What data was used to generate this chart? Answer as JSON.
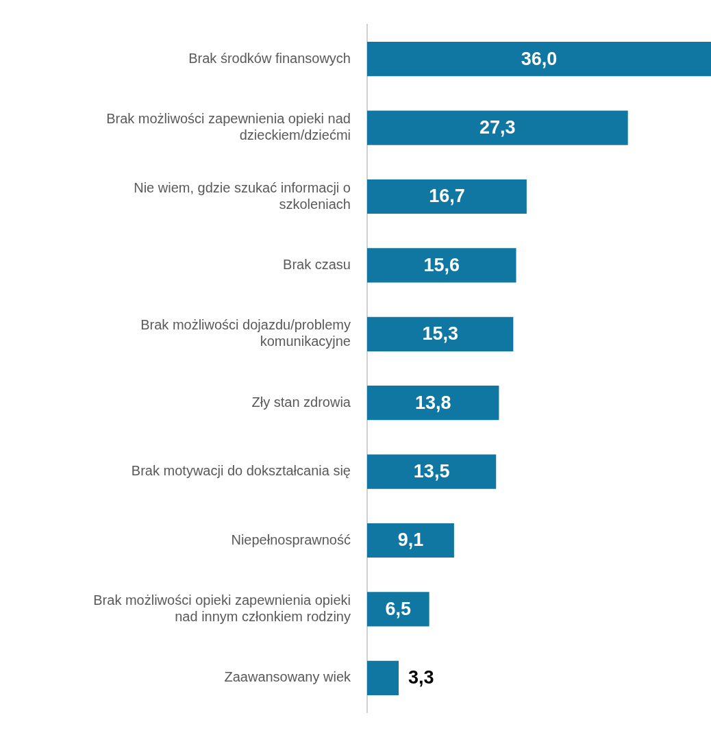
{
  "chart_data": {
    "type": "bar",
    "orientation": "horizontal",
    "categories": [
      "Brak środków finansowych",
      "Brak możliwości zapewnienia opieki nad dzieckiem/dziećmi",
      "Nie wiem, gdzie szukać informacji o szkoleniach",
      "Brak czasu",
      "Brak możliwości dojazdu/problemy komunikacyjne",
      "Zły stan zdrowia",
      "Brak motywacji do dokształcania się",
      "Niepełnosprawność",
      "Brak możliwości opieki zapewnienia opieki nad innym członkiem rodziny",
      "Zaawansowany wiek"
    ],
    "values": [
      36.0,
      27.3,
      16.7,
      15.6,
      15.3,
      13.8,
      13.5,
      9.1,
      6.5,
      3.3
    ],
    "value_labels": [
      "36,0",
      "27,3",
      "16,7",
      "15,6",
      "15,3",
      "13,8",
      "13,5",
      "9,1",
      "6,5",
      "3,3"
    ],
    "color": "#0f77a1"
  }
}
